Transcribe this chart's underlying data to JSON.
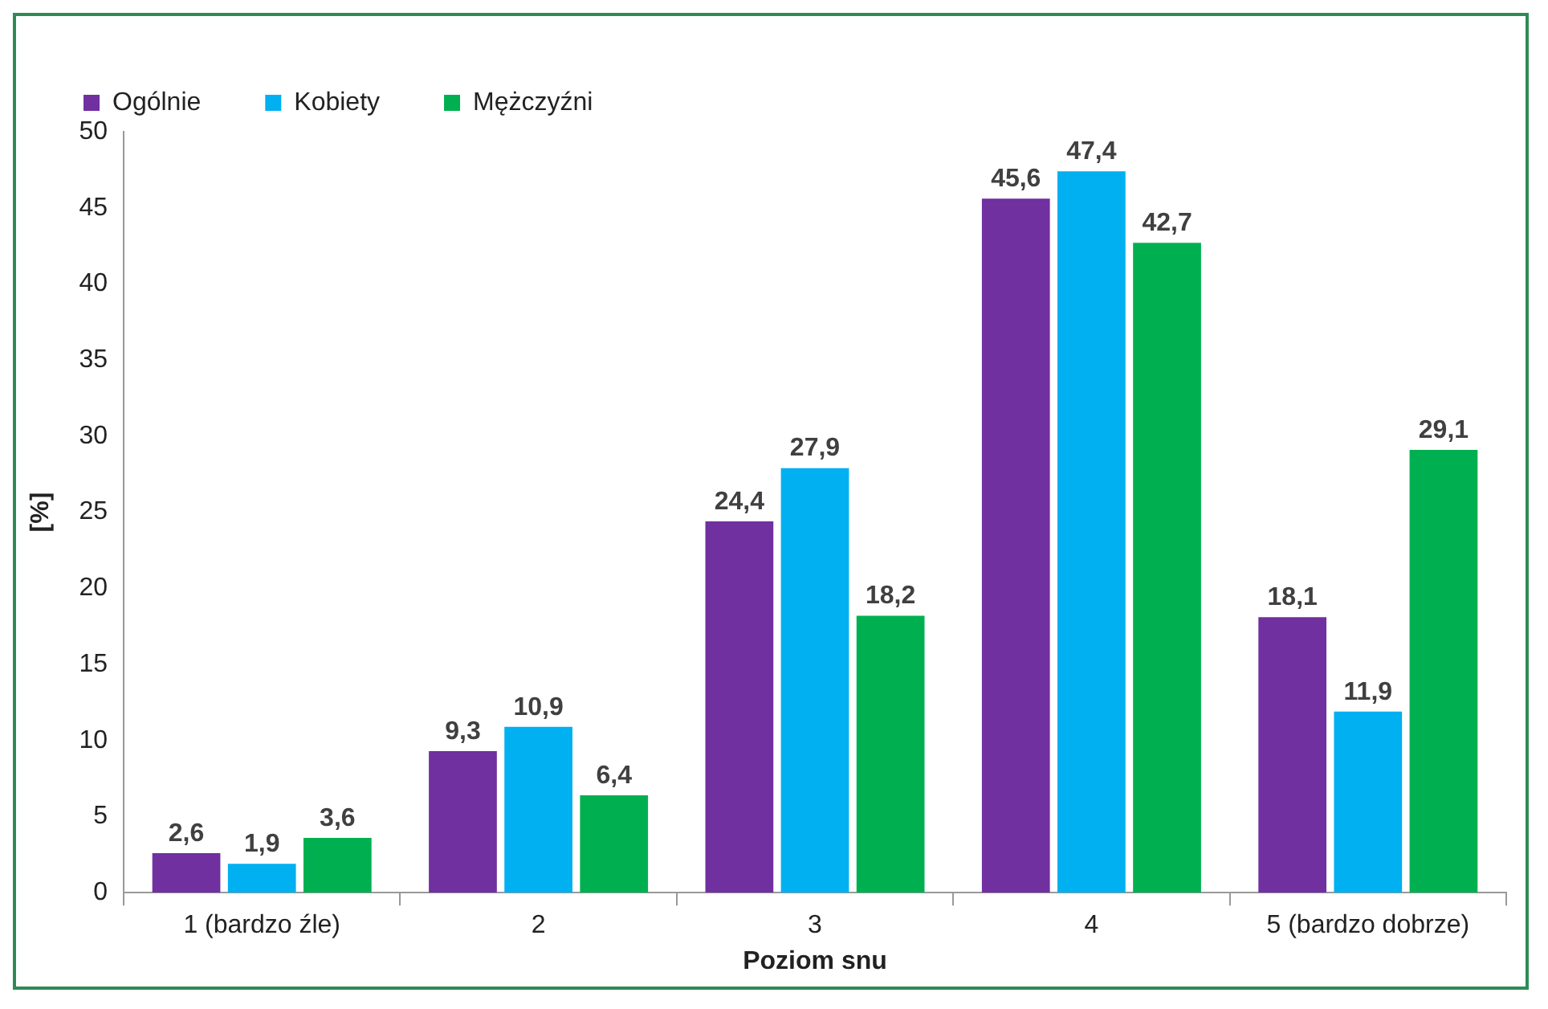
{
  "chart_data": {
    "type": "bar",
    "xlabel": "Poziom snu",
    "ylabel": "[%]",
    "categories": [
      "1 (bardzo źle)",
      "2",
      "3",
      "4",
      "5 (bardzo dobrze)"
    ],
    "series": [
      {
        "name": "Ogólnie",
        "color": "#7030a0",
        "values": [
          2.6,
          9.3,
          24.4,
          45.6,
          18.1
        ],
        "value_labels": [
          "2,6",
          "9,3",
          "24,4",
          "45,6",
          "18,1"
        ]
      },
      {
        "name": "Kobiety",
        "color": "#00b0f0",
        "values": [
          1.9,
          10.9,
          27.9,
          47.4,
          11.9
        ],
        "value_labels": [
          "1,9",
          "10,9",
          "27,9",
          "47,4",
          "11,9"
        ]
      },
      {
        "name": "Mężczyźni",
        "color": "#00b050",
        "values": [
          3.6,
          6.4,
          18.2,
          42.7,
          29.1
        ],
        "value_labels": [
          "3,6",
          "6,4",
          "18,2",
          "42,7",
          "29,1"
        ]
      }
    ],
    "ylim": [
      0,
      50
    ],
    "yticks": [
      0,
      5,
      10,
      15,
      20,
      25,
      30,
      35,
      40,
      45,
      50
    ],
    "grid": false,
    "legend": "top left"
  }
}
